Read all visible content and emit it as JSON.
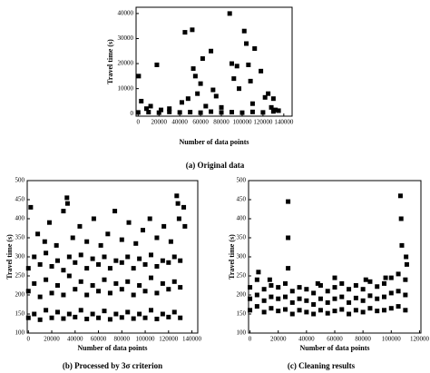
{
  "chart_data": [
    {
      "type": "scatter",
      "caption": "(a) Original data",
      "xlabel": "Number of data points",
      "ylabel": "Travel time (s)",
      "color": "#000000",
      "xlim": [
        -2000,
        148000
      ],
      "xticks": [
        0,
        20000,
        40000,
        60000,
        80000,
        100000,
        120000,
        140000
      ],
      "ylim": [
        -1000,
        42500
      ],
      "yticks": [
        0,
        10000,
        20000,
        30000,
        40000
      ],
      "x": [
        500,
        3000,
        8000,
        12000,
        18000,
        22000,
        30000,
        42000,
        45000,
        48000,
        52000,
        53000,
        55000,
        57000,
        60000,
        62000,
        65000,
        70000,
        72000,
        75000,
        80000,
        88000,
        90000,
        92000,
        95000,
        97000,
        102000,
        104000,
        106000,
        108000,
        110000,
        112000,
        118000,
        122000,
        125000,
        128000,
        130000,
        132000,
        0,
        10000,
        20000,
        30000,
        40000,
        50000,
        60000,
        70000,
        80000,
        90000,
        100000,
        110000,
        120000,
        130000,
        135000
      ],
      "values": [
        15000,
        5000,
        2000,
        3000,
        19500,
        1500,
        2000,
        4500,
        32500,
        6000,
        33500,
        18000,
        15000,
        8000,
        12000,
        22000,
        3000,
        25000,
        9500,
        7000,
        2500,
        40000,
        20000,
        14000,
        19000,
        10000,
        33000,
        28000,
        19500,
        13000,
        4000,
        26000,
        17000,
        6500,
        8000,
        2500,
        6000,
        1500,
        500,
        600,
        400,
        700,
        500,
        600,
        400,
        800,
        500,
        600,
        400,
        700,
        500,
        900,
        1200
      ]
    },
    {
      "type": "scatter",
      "caption": "(b) Processed by 3σ criterion",
      "xlabel": "Number of data points",
      "ylabel": "Travel time (s)",
      "color": "#000000",
      "xlim": [
        -1000,
        145000
      ],
      "xticks": [
        0,
        20000,
        40000,
        60000,
        80000,
        100000,
        120000,
        140000
      ],
      "ylim": [
        100,
        500
      ],
      "yticks": [
        100,
        150,
        200,
        250,
        300,
        350,
        400,
        450,
        500
      ],
      "x": [
        0,
        0,
        0,
        5000,
        5000,
        5000,
        10000,
        10000,
        10000,
        15000,
        15000,
        15000,
        20000,
        20000,
        20000,
        25000,
        25000,
        25000,
        30000,
        30000,
        30000,
        35000,
        35000,
        35000,
        40000,
        40000,
        40000,
        45000,
        45000,
        45000,
        50000,
        50000,
        50000,
        55000,
        55000,
        55000,
        60000,
        60000,
        60000,
        65000,
        65000,
        65000,
        70000,
        70000,
        70000,
        75000,
        75000,
        75000,
        80000,
        80000,
        80000,
        85000,
        85000,
        85000,
        90000,
        90000,
        90000,
        95000,
        95000,
        95000,
        100000,
        100000,
        100000,
        105000,
        105000,
        105000,
        110000,
        110000,
        110000,
        115000,
        115000,
        115000,
        120000,
        120000,
        120000,
        125000,
        125000,
        125000,
        130000,
        130000,
        130000,
        2000,
        8000,
        14000,
        18000,
        24000,
        30000,
        33000,
        33500,
        38000,
        44000,
        50000,
        56000,
        62000,
        68000,
        74000,
        80000,
        86000,
        92000,
        98000,
        104000,
        110000,
        116000,
        122000,
        127000,
        128000,
        129000,
        133000,
        134000
      ],
      "values": [
        140,
        210,
        270,
        150,
        230,
        300,
        135,
        195,
        280,
        160,
        240,
        310,
        140,
        205,
        275,
        155,
        225,
        290,
        138,
        200,
        265,
        150,
        250,
        300,
        142,
        215,
        285,
        160,
        235,
        305,
        137,
        200,
        270,
        150,
        225,
        295,
        140,
        210,
        280,
        158,
        240,
        300,
        136,
        205,
        270,
        150,
        230,
        290,
        141,
        215,
        285,
        155,
        235,
        300,
        138,
        200,
        270,
        150,
        225,
        295,
        140,
        210,
        280,
        160,
        245,
        305,
        137,
        205,
        275,
        150,
        230,
        290,
        142,
        215,
        285,
        155,
        235,
        300,
        140,
        220,
        290,
        430,
        360,
        340,
        390,
        330,
        420,
        455,
        440,
        350,
        380,
        340,
        400,
        330,
        360,
        420,
        345,
        390,
        335,
        370,
        400,
        350,
        380,
        340,
        460,
        440,
        400,
        430,
        380
      ]
    },
    {
      "type": "scatter",
      "caption": "(c) Cleaning results",
      "xlabel": "Number of data points",
      "ylabel": "Travel time (s)",
      "color": "#000000",
      "xlim": [
        -1000,
        121000
      ],
      "xticks": [
        0,
        20000,
        40000,
        60000,
        80000,
        100000,
        120000
      ],
      "ylim": [
        100,
        500
      ],
      "yticks": [
        100,
        150,
        200,
        250,
        300,
        350,
        400,
        450,
        500
      ],
      "x": [
        0,
        0,
        0,
        5000,
        5000,
        5000,
        10000,
        10000,
        10000,
        15000,
        15000,
        15000,
        20000,
        20000,
        20000,
        25000,
        25000,
        25000,
        30000,
        30000,
        30000,
        35000,
        35000,
        35000,
        40000,
        40000,
        40000,
        45000,
        45000,
        45000,
        50000,
        50000,
        50000,
        55000,
        55000,
        55000,
        60000,
        60000,
        60000,
        65000,
        65000,
        65000,
        70000,
        70000,
        70000,
        75000,
        75000,
        75000,
        80000,
        80000,
        80000,
        85000,
        85000,
        85000,
        90000,
        90000,
        90000,
        95000,
        95000,
        95000,
        100000,
        100000,
        100000,
        105000,
        105000,
        105000,
        110000,
        110000,
        110000,
        27000,
        27000,
        27000,
        6000,
        14000,
        48000,
        60000,
        82000,
        96000,
        106500,
        107000,
        107500,
        110500,
        111000
      ],
      "values": [
        160,
        190,
        220,
        170,
        200,
        240,
        155,
        185,
        215,
        165,
        195,
        225,
        158,
        190,
        220,
        162,
        195,
        230,
        150,
        180,
        210,
        160,
        190,
        220,
        155,
        185,
        215,
        150,
        175,
        205,
        160,
        190,
        225,
        152,
        180,
        210,
        158,
        190,
        220,
        162,
        195,
        230,
        150,
        180,
        215,
        160,
        192,
        225,
        155,
        185,
        215,
        165,
        198,
        235,
        158,
        190,
        222,
        160,
        195,
        230,
        165,
        205,
        245,
        170,
        210,
        255,
        160,
        200,
        240,
        445,
        350,
        270,
        260,
        240,
        230,
        245,
        240,
        245,
        460,
        400,
        330,
        300,
        280
      ]
    }
  ]
}
